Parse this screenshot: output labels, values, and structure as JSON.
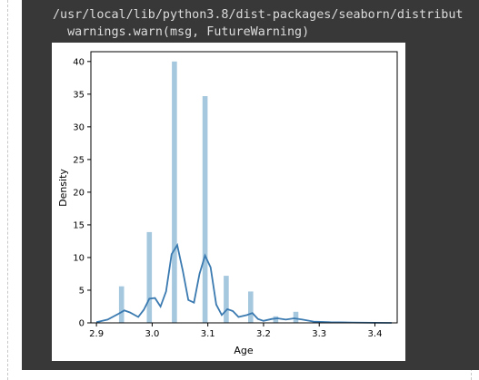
{
  "output": {
    "warning_line_1": "/usr/local/lib/python3.8/dist-packages/seaborn/distribut",
    "warning_line_2": "  warnings.warn(msg, FutureWarning)"
  },
  "colors": {
    "output_background": "#383838",
    "bar_fill": "#a6c8df",
    "kde_line": "#3a7ab0"
  },
  "chart_data": {
    "type": "bar",
    "title": "",
    "xlabel": "Age",
    "ylabel": "Density",
    "xlim": [
      2.89,
      3.44
    ],
    "ylim": [
      0,
      41.5
    ],
    "xticks": [
      "2.9",
      "3.0",
      "3.1",
      "3.2",
      "3.3",
      "3.4"
    ],
    "yticks": [
      "0",
      "5",
      "10",
      "15",
      "20",
      "25",
      "30",
      "35",
      "40"
    ],
    "grid": false,
    "legend": "none",
    "bar_width": 0.0092,
    "bins": [
      {
        "x": 2.945,
        "density": 5.6
      },
      {
        "x": 2.995,
        "density": 13.9
      },
      {
        "x": 3.04,
        "density": 40.0
      },
      {
        "x": 3.095,
        "density": 34.7
      },
      {
        "x": 3.133,
        "density": 7.2
      },
      {
        "x": 3.177,
        "density": 4.8
      },
      {
        "x": 3.222,
        "density": 1.0
      },
      {
        "x": 3.258,
        "density": 1.7
      }
    ],
    "kde": {
      "x": [
        2.9,
        2.92,
        2.94,
        2.95,
        2.96,
        2.975,
        2.985,
        2.995,
        3.005,
        3.015,
        3.025,
        3.035,
        3.045,
        3.055,
        3.065,
        3.075,
        3.085,
        3.095,
        3.105,
        3.115,
        3.125,
        3.135,
        3.145,
        3.155,
        3.17,
        3.18,
        3.19,
        3.2,
        3.215,
        3.225,
        3.24,
        3.255,
        3.27,
        3.29,
        3.32,
        3.36,
        3.4,
        3.43
      ],
      "y": [
        0.1,
        0.5,
        1.4,
        1.9,
        1.6,
        0.9,
        2.0,
        3.7,
        3.8,
        2.5,
        4.8,
        10.5,
        11.9,
        8.0,
        3.5,
        3.1,
        7.5,
        10.3,
        8.5,
        2.8,
        1.2,
        2.1,
        1.8,
        0.9,
        1.2,
        1.5,
        0.6,
        0.3,
        0.6,
        0.7,
        0.5,
        0.7,
        0.5,
        0.2,
        0.1,
        0.05,
        0.02,
        0.0
      ]
    }
  }
}
